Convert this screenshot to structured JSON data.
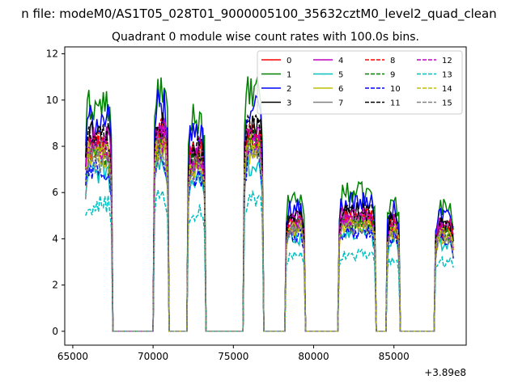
{
  "chart_data": {
    "type": "line",
    "suptitle": "n file: modeM0/AS1T05_028T01_9000005100_35632cztM0_level2_quad_clean",
    "title": "Quadrant 0 module wise count rates with 100.0s bins.",
    "xlabel": "",
    "ylabel": "",
    "x_offset_label": "+3.89e8",
    "xlim": [
      64500,
      89500
    ],
    "ylim": [
      -0.6,
      12.3
    ],
    "xticks": [
      65000,
      70000,
      75000,
      80000,
      85000
    ],
    "xtick_labels": [
      "65000",
      "70000",
      "75000",
      "80000",
      "85000"
    ],
    "yticks": [
      0,
      2,
      4,
      6,
      8,
      10,
      12
    ],
    "ytick_labels": [
      "0",
      "2",
      "4",
      "6",
      "8",
      "10",
      "12"
    ],
    "grid": false,
    "legend_position": "top-right",
    "legend_columns": 4,
    "segments": [
      {
        "x0": 65800,
        "x1": 67400,
        "base": 8.0
      },
      {
        "x0": 70100,
        "x1": 70900,
        "base": 8.5
      },
      {
        "x0": 72200,
        "x1": 73200,
        "base": 7.6
      },
      {
        "x0": 75700,
        "x1": 76800,
        "base": 8.4
      },
      {
        "x0": 78300,
        "x1": 79400,
        "base": 4.7
      },
      {
        "x0": 81600,
        "x1": 83800,
        "base": 4.9
      },
      {
        "x0": 84600,
        "x1": 85300,
        "base": 4.6
      },
      {
        "x0": 87600,
        "x1": 88700,
        "base": 4.4
      }
    ],
    "gap_level": 0.0,
    "series": [
      {
        "name": "0",
        "color": "#ff0000",
        "dashed": false,
        "scale": 1.0
      },
      {
        "name": "1",
        "color": "#008000",
        "dashed": false,
        "scale": 1.22
      },
      {
        "name": "2",
        "color": "#0000ff",
        "dashed": false,
        "scale": 1.14
      },
      {
        "name": "3",
        "color": "#000000",
        "dashed": false,
        "scale": 1.06
      },
      {
        "name": "4",
        "color": "#bf00bf",
        "dashed": false,
        "scale": 1.03
      },
      {
        "name": "5",
        "color": "#00bfbf",
        "dashed": false,
        "scale": 0.86
      },
      {
        "name": "6",
        "color": "#bfbf00",
        "dashed": false,
        "scale": 0.93
      },
      {
        "name": "7",
        "color": "#808080",
        "dashed": false,
        "scale": 0.97
      },
      {
        "name": "8",
        "color": "#ff0000",
        "dashed": true,
        "scale": 1.0
      },
      {
        "name": "9",
        "color": "#008000",
        "dashed": true,
        "scale": 0.96
      },
      {
        "name": "10",
        "color": "#0000ff",
        "dashed": true,
        "scale": 0.88
      },
      {
        "name": "11",
        "color": "#000000",
        "dashed": true,
        "scale": 1.04
      },
      {
        "name": "12",
        "color": "#bf00bf",
        "dashed": true,
        "scale": 0.98
      },
      {
        "name": "13",
        "color": "#00bfbf",
        "dashed": true,
        "scale": 0.68
      },
      {
        "name": "14",
        "color": "#bfbf00",
        "dashed": true,
        "scale": 0.95
      },
      {
        "name": "15",
        "color": "#808080",
        "dashed": true,
        "scale": 0.92
      }
    ]
  }
}
